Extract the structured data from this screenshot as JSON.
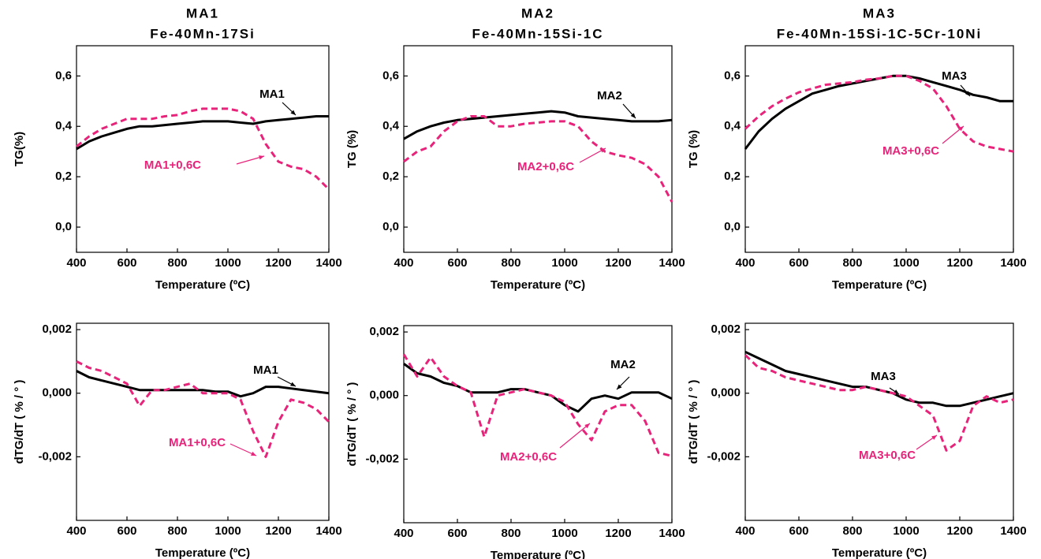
{
  "chart_data": [
    {
      "type": "line",
      "title": "MA1",
      "subtitle": "Fe-40Mn-17Si",
      "xlabel": "Temperature (ºC)",
      "ylabel": "TG(%)",
      "x": [
        400,
        450,
        500,
        550,
        600,
        650,
        700,
        750,
        800,
        850,
        900,
        950,
        1000,
        1050,
        1100,
        1150,
        1200,
        1250,
        1300,
        1350,
        1400
      ],
      "xlim": [
        400,
        1400
      ],
      "xticks": [
        400,
        600,
        800,
        1000,
        1200,
        1400
      ],
      "ylim": [
        -0.1,
        0.72
      ],
      "yticks": [
        {
          "value": 0,
          "label": "0,0"
        },
        {
          "value": 0.2,
          "label": "0,2"
        },
        {
          "value": 0.4,
          "label": "0,4"
        },
        {
          "value": 0.6,
          "label": "0,6"
        }
      ],
      "series": [
        {
          "name": "MA1",
          "color": "#000000",
          "values": [
            0.31,
            0.34,
            0.36,
            0.375,
            0.39,
            0.4,
            0.4,
            0.405,
            0.41,
            0.415,
            0.42,
            0.42,
            0.42,
            0.415,
            0.41,
            0.42,
            0.425,
            0.43,
            0.435,
            0.44,
            0.44
          ]
        },
        {
          "name": "MA1+0,6C",
          "color": "#e8237a",
          "values": [
            0.32,
            0.36,
            0.39,
            0.41,
            0.43,
            0.43,
            0.43,
            0.44,
            0.445,
            0.46,
            0.47,
            0.47,
            0.47,
            0.46,
            0.43,
            0.33,
            0.26,
            0.24,
            0.23,
            0.2,
            0.15
          ]
        }
      ]
    },
    {
      "type": "line",
      "title": "MA2",
      "subtitle": "Fe-40Mn-15Si-1C",
      "xlabel": "Temperature (ºC)",
      "ylabel": "TG (%)",
      "x": [
        400,
        450,
        500,
        550,
        600,
        650,
        700,
        750,
        800,
        850,
        900,
        950,
        1000,
        1050,
        1100,
        1150,
        1200,
        1250,
        1300,
        1350,
        1400
      ],
      "xlim": [
        400,
        1400
      ],
      "xticks": [
        400,
        600,
        800,
        1000,
        1200,
        1400
      ],
      "ylim": [
        -0.1,
        0.72
      ],
      "yticks": [
        {
          "value": 0,
          "label": "0,0"
        },
        {
          "value": 0.2,
          "label": "0,2"
        },
        {
          "value": 0.4,
          "label": "0,4"
        },
        {
          "value": 0.6,
          "label": "0,6"
        }
      ],
      "series": [
        {
          "name": "MA2",
          "color": "#000000",
          "values": [
            0.35,
            0.38,
            0.4,
            0.415,
            0.425,
            0.43,
            0.435,
            0.44,
            0.445,
            0.45,
            0.455,
            0.46,
            0.455,
            0.44,
            0.435,
            0.43,
            0.425,
            0.42,
            0.42,
            0.42,
            0.425
          ]
        },
        {
          "name": "MA2+0,6C",
          "color": "#e8237a",
          "values": [
            0.26,
            0.3,
            0.32,
            0.38,
            0.42,
            0.44,
            0.44,
            0.4,
            0.4,
            0.41,
            0.415,
            0.42,
            0.42,
            0.4,
            0.34,
            0.3,
            0.285,
            0.275,
            0.25,
            0.2,
            0.1
          ]
        }
      ]
    },
    {
      "type": "line",
      "title": "MA3",
      "subtitle": "Fe-40Mn-15Si-1C-5Cr-10Ni",
      "xlabel": "Temperature (ºC)",
      "ylabel": "TG (%)",
      "x": [
        400,
        450,
        500,
        550,
        600,
        650,
        700,
        750,
        800,
        850,
        900,
        950,
        1000,
        1050,
        1100,
        1150,
        1200,
        1250,
        1300,
        1350,
        1400
      ],
      "xlim": [
        400,
        1400
      ],
      "xticks": [
        400,
        600,
        800,
        1000,
        1200,
        1400
      ],
      "ylim": [
        -0.1,
        0.72
      ],
      "yticks": [
        {
          "value": 0,
          "label": "0,0"
        },
        {
          "value": 0.2,
          "label": "0,2"
        },
        {
          "value": 0.4,
          "label": "0,4"
        },
        {
          "value": 0.6,
          "label": "0,6"
        }
      ],
      "series": [
        {
          "name": "MA3",
          "color": "#000000",
          "values": [
            0.31,
            0.38,
            0.43,
            0.47,
            0.5,
            0.53,
            0.545,
            0.56,
            0.57,
            0.58,
            0.59,
            0.6,
            0.6,
            0.59,
            0.575,
            0.56,
            0.545,
            0.525,
            0.515,
            0.5,
            0.5
          ]
        },
        {
          "name": "MA3+0,6C",
          "color": "#e8237a",
          "values": [
            0.39,
            0.44,
            0.48,
            0.51,
            0.535,
            0.55,
            0.565,
            0.57,
            0.575,
            0.585,
            0.59,
            0.6,
            0.6,
            0.58,
            0.55,
            0.48,
            0.39,
            0.34,
            0.32,
            0.31,
            0.3
          ]
        }
      ]
    },
    {
      "type": "line",
      "xlabel": "Temperature (ºC)",
      "ylabel": "dTG/dT ( % / ° )",
      "x": [
        400,
        450,
        500,
        550,
        600,
        650,
        700,
        750,
        800,
        850,
        900,
        950,
        1000,
        1050,
        1100,
        1150,
        1200,
        1250,
        1300,
        1350,
        1400
      ],
      "xlim": [
        400,
        1400
      ],
      "xticks": [
        400,
        600,
        800,
        1000,
        1200,
        1400
      ],
      "ylim": [
        -0.004,
        0.0022
      ],
      "yticks": [
        {
          "value": -0.002,
          "label": "-0,002"
        },
        {
          "value": 0,
          "label": "0,000"
        },
        {
          "value": 0.002,
          "label": "0,002"
        }
      ],
      "series": [
        {
          "name": "MA1",
          "color": "#000000",
          "values": [
            0.0007,
            0.0005,
            0.0004,
            0.0003,
            0.0002,
            0.0001,
            0.0001,
            0.0001,
            0.0001,
            0.0001,
            0.0001,
            5e-05,
            5e-05,
            -0.0001,
            0,
            0.0002,
            0.0002,
            0.00015,
            0.0001,
            5e-05,
            0
          ]
        },
        {
          "name": "MA1+0,6C",
          "color": "#e8237a",
          "values": [
            0.001,
            0.0008,
            0.0007,
            0.0005,
            0.0003,
            -0.0004,
            0.0001,
            0.0001,
            0.0002,
            0.0003,
            0,
            0,
            0,
            -0.0002,
            -0.0012,
            -0.002,
            -0.0009,
            -0.0002,
            -0.0003,
            -0.0005,
            -0.0009
          ]
        }
      ]
    },
    {
      "type": "line",
      "xlabel": "Temperature (ºC)",
      "ylabel": "dTG/dT ( % / ° )",
      "x": [
        400,
        450,
        500,
        550,
        600,
        650,
        700,
        750,
        800,
        850,
        900,
        950,
        1000,
        1050,
        1100,
        1150,
        1200,
        1250,
        1300,
        1350,
        1400
      ],
      "xlim": [
        400,
        1400
      ],
      "xticks": [
        400,
        600,
        800,
        1000,
        1200,
        1400
      ],
      "ylim": [
        -0.004,
        0.0022
      ],
      "yticks": [
        {
          "value": -0.002,
          "label": "-0,002"
        },
        {
          "value": 0,
          "label": "0,000"
        },
        {
          "value": 0.002,
          "label": "0,002"
        }
      ],
      "series": [
        {
          "name": "MA2",
          "color": "#000000",
          "values": [
            0.001,
            0.0007,
            0.0006,
            0.0004,
            0.0003,
            0.0001,
            0.0001,
            0.0001,
            0.0002,
            0.0002,
            0.0001,
            0,
            -0.0003,
            -0.0005,
            -0.0001,
            0,
            -0.0001,
            0.0001,
            0.0001,
            0.0001,
            -0.0001
          ]
        },
        {
          "name": "MA2+0,6C",
          "color": "#e8237a",
          "values": [
            0.0013,
            0.0006,
            0.0012,
            0.0006,
            0.0003,
            0.0001,
            -0.0013,
            0,
            0.0001,
            0.0002,
            0.0001,
            0,
            -0.0002,
            -0.0009,
            -0.0014,
            -0.0005,
            -0.0003,
            -0.0003,
            -0.0008,
            -0.0018,
            -0.0019
          ]
        }
      ]
    },
    {
      "type": "line",
      "xlabel": "Temperature (ºC)",
      "ylabel": "dTG/dT ( % / ° )",
      "x": [
        400,
        450,
        500,
        550,
        600,
        650,
        700,
        750,
        800,
        850,
        900,
        950,
        1000,
        1050,
        1100,
        1150,
        1200,
        1250,
        1300,
        1350,
        1400
      ],
      "xlim": [
        400,
        1400
      ],
      "xticks": [
        400,
        600,
        800,
        1000,
        1200,
        1400
      ],
      "ylim": [
        -0.004,
        0.0022
      ],
      "yticks": [
        {
          "value": -0.002,
          "label": "-0,002"
        },
        {
          "value": 0,
          "label": "0,000"
        },
        {
          "value": 0.002,
          "label": "0,002"
        }
      ],
      "series": [
        {
          "name": "MA3",
          "color": "#000000",
          "values": [
            0.0013,
            0.0011,
            0.0009,
            0.0007,
            0.0006,
            0.0005,
            0.0004,
            0.0003,
            0.0002,
            0.0002,
            0.0001,
            0,
            -0.0002,
            -0.0003,
            -0.0003,
            -0.0004,
            -0.0004,
            -0.0003,
            -0.0002,
            -0.0001,
            0
          ]
        },
        {
          "name": "MA3+0,6C",
          "color": "#e8237a",
          "values": [
            0.0012,
            0.0008,
            0.0007,
            0.0005,
            0.0004,
            0.0003,
            0.0002,
            0.0001,
            0.0001,
            0.0002,
            0.0001,
            0,
            -0.0001,
            -0.0004,
            -0.0007,
            -0.0018,
            -0.0015,
            -0.0004,
            -0.0001,
            -0.0003,
            -0.0002
          ]
        }
      ]
    }
  ]
}
